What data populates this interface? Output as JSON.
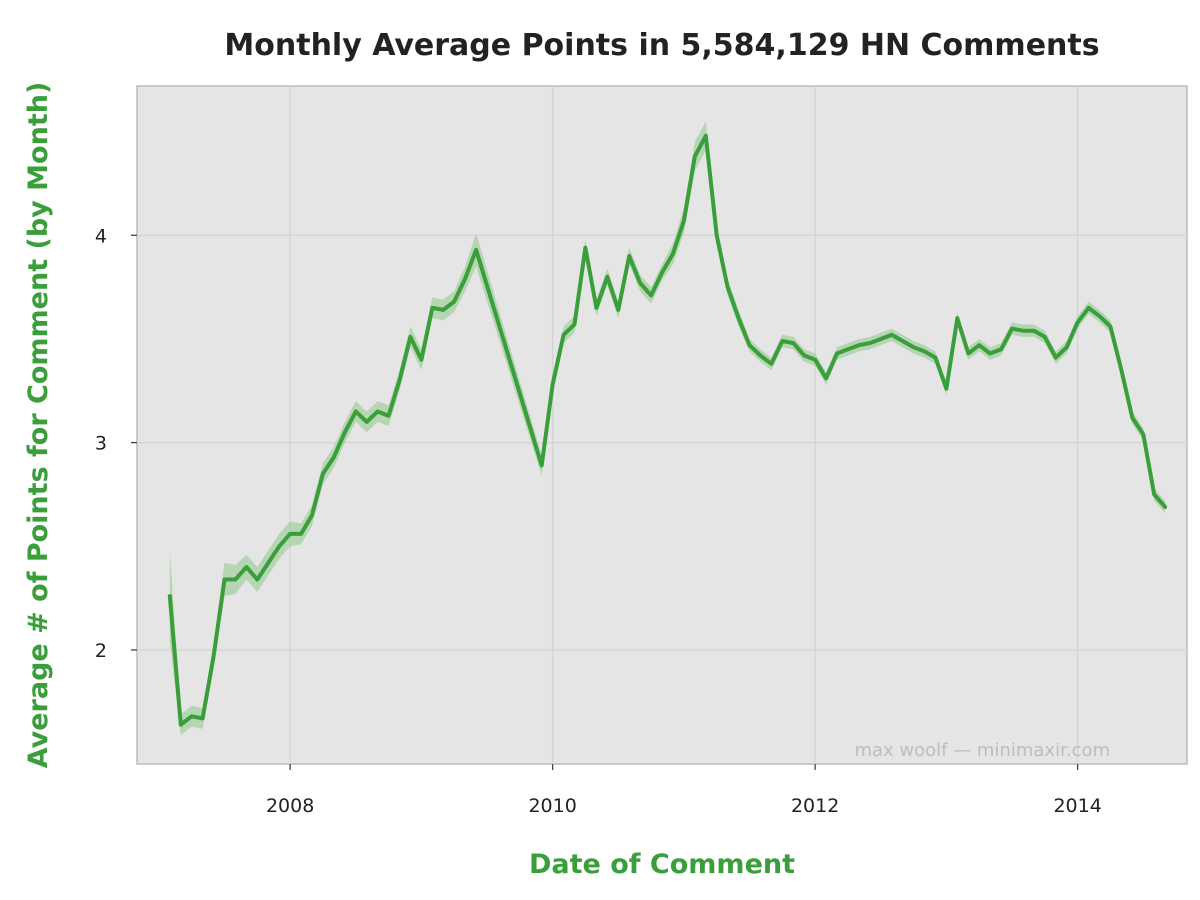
{
  "colors": {
    "series": "#3a9e3a",
    "band": "#a6cfa0",
    "panel": "#e5e5e5",
    "grid": "#d4d4d4",
    "axis_title": "#3a9e3a"
  },
  "chart_data": {
    "type": "line",
    "title": "Monthly Average Points in 5,584,129 HN Comments",
    "xlabel": "Date of Comment",
    "ylabel": "Average # of Points for Comment (by Month)",
    "watermark": "max woolf — minimaxir.com",
    "x_ticks": [
      "2008",
      "2010",
      "2012",
      "2014"
    ],
    "y_ticks": [
      "2",
      "3",
      "4"
    ],
    "xlim": [
      "2006-11",
      "2014-11"
    ],
    "ylim": [
      1.45,
      4.72
    ],
    "grid": true,
    "legend": "none",
    "series": [
      {
        "x": [
          "2007-02",
          "2007-03",
          "2007-04",
          "2007-05",
          "2007-06",
          "2007-07",
          "2007-08",
          "2007-09",
          "2007-10",
          "2007-11",
          "2007-12",
          "2008-01",
          "2008-02",
          "2008-03",
          "2008-04",
          "2008-05",
          "2008-06",
          "2008-07",
          "2008-08",
          "2008-09",
          "2008-10",
          "2008-11",
          "2008-12",
          "2009-01",
          "2009-02",
          "2009-03",
          "2009-04",
          "2009-05",
          "2009-06",
          "2009-12",
          "2010-01",
          "2010-02",
          "2010-03",
          "2010-04",
          "2010-05",
          "2010-06",
          "2010-07",
          "2010-08",
          "2010-09",
          "2010-10",
          "2010-11",
          "2010-12",
          "2011-01",
          "2011-02",
          "2011-03",
          "2011-04",
          "2011-05",
          "2011-06",
          "2011-07",
          "2011-08",
          "2011-09",
          "2011-10",
          "2011-11",
          "2011-12",
          "2012-01",
          "2012-02",
          "2012-03",
          "2012-04",
          "2012-05",
          "2012-06",
          "2012-07",
          "2012-08",
          "2012-09",
          "2012-10",
          "2012-11",
          "2012-12",
          "2013-01",
          "2013-02",
          "2013-03",
          "2013-04",
          "2013-05",
          "2013-06",
          "2013-07",
          "2013-08",
          "2013-09",
          "2013-10",
          "2013-11",
          "2013-12",
          "2014-01",
          "2014-02",
          "2014-03",
          "2014-04",
          "2014-05",
          "2014-06",
          "2014-07",
          "2014-08",
          "2014-09"
        ],
        "y": [
          2.26,
          1.64,
          1.68,
          1.67,
          1.97,
          2.34,
          2.34,
          2.4,
          2.34,
          2.42,
          2.5,
          2.56,
          2.56,
          2.65,
          2.85,
          2.93,
          3.05,
          3.15,
          3.1,
          3.15,
          3.13,
          3.3,
          3.51,
          3.4,
          3.65,
          3.64,
          3.68,
          3.79,
          3.93,
          2.89,
          3.28,
          3.52,
          3.57,
          3.94,
          3.65,
          3.8,
          3.64,
          3.9,
          3.77,
          3.71,
          3.82,
          3.91,
          4.07,
          4.38,
          4.48,
          4.0,
          3.75,
          3.6,
          3.47,
          3.42,
          3.38,
          3.49,
          3.48,
          3.42,
          3.4,
          3.31,
          3.43,
          3.45,
          3.47,
          3.48,
          3.5,
          3.52,
          3.49,
          3.46,
          3.44,
          3.41,
          3.26,
          3.6,
          3.43,
          3.47,
          3.43,
          3.45,
          3.55,
          3.54,
          3.54,
          3.51,
          3.41,
          3.46,
          3.58,
          3.65,
          3.61,
          3.56,
          3.35,
          3.12,
          3.04,
          2.75,
          2.69
        ],
        "ci": [
          0.22,
          0.05,
          0.05,
          0.05,
          0.06,
          0.08,
          0.07,
          0.06,
          0.06,
          0.06,
          0.06,
          0.06,
          0.05,
          0.05,
          0.05,
          0.05,
          0.05,
          0.05,
          0.05,
          0.05,
          0.05,
          0.05,
          0.05,
          0.05,
          0.05,
          0.05,
          0.05,
          0.06,
          0.08,
          0.05,
          0.05,
          0.04,
          0.04,
          0.04,
          0.04,
          0.04,
          0.04,
          0.04,
          0.04,
          0.04,
          0.04,
          0.05,
          0.06,
          0.07,
          0.07,
          0.05,
          0.04,
          0.04,
          0.03,
          0.03,
          0.03,
          0.03,
          0.03,
          0.03,
          0.03,
          0.03,
          0.03,
          0.03,
          0.03,
          0.03,
          0.03,
          0.03,
          0.03,
          0.03,
          0.03,
          0.03,
          0.03,
          0.03,
          0.03,
          0.03,
          0.03,
          0.03,
          0.03,
          0.03,
          0.03,
          0.03,
          0.03,
          0.03,
          0.03,
          0.03,
          0.03,
          0.03,
          0.03,
          0.03,
          0.03,
          0.03,
          0.03
        ]
      }
    ]
  }
}
